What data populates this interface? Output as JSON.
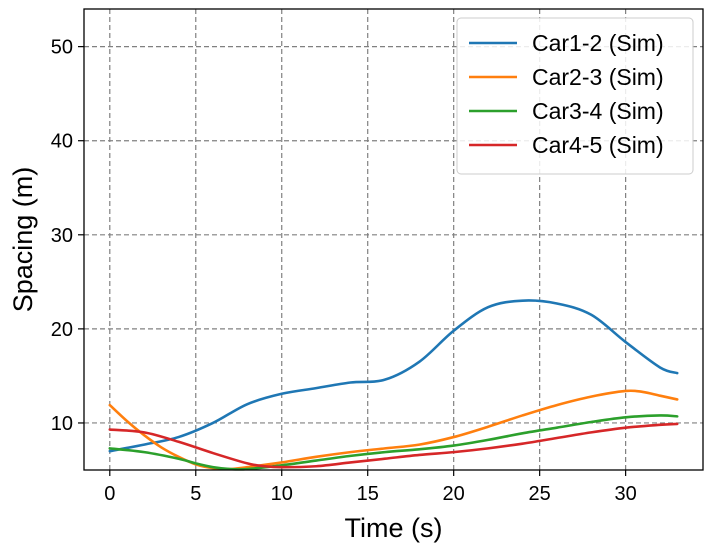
{
  "chart_data": {
    "type": "line",
    "title": "",
    "xlabel": "Time (s)",
    "ylabel": "Spacing (m)",
    "xlim": [
      -1.5,
      34.5
    ],
    "ylim": [
      5,
      54
    ],
    "xticks": [
      0,
      5,
      10,
      15,
      20,
      25,
      30
    ],
    "yticks": [
      10,
      20,
      30,
      40,
      50
    ],
    "grid": true,
    "legend_position": "top-right",
    "series": [
      {
        "name": "Car1-2 (Sim)",
        "color": "#1f77b4",
        "x": [
          0,
          2,
          4,
          6,
          8,
          10,
          12,
          14,
          16,
          18,
          20,
          22,
          24,
          26,
          28,
          30,
          32,
          33
        ],
        "y": [
          7.0,
          7.7,
          8.5,
          10.0,
          12.0,
          13.1,
          13.7,
          14.3,
          14.6,
          16.5,
          19.8,
          22.3,
          23.0,
          22.7,
          21.5,
          18.6,
          15.9,
          15.3
        ]
      },
      {
        "name": "Car2-3 (Sim)",
        "color": "#ff7f0e",
        "x": [
          0,
          1,
          2,
          3,
          4,
          5,
          6,
          7,
          8,
          10,
          12,
          14,
          16,
          18,
          20,
          22,
          24,
          26,
          28,
          30,
          31,
          32,
          33
        ],
        "y": [
          11.9,
          10.2,
          8.7,
          7.4,
          6.4,
          5.6,
          5.2,
          5.1,
          5.3,
          5.8,
          6.4,
          6.9,
          7.3,
          7.7,
          8.5,
          9.6,
          10.8,
          11.9,
          12.8,
          13.4,
          13.3,
          12.9,
          12.5
        ]
      },
      {
        "name": "Car3-4 (Sim)",
        "color": "#2ca02c",
        "x": [
          0,
          2,
          4,
          5,
          6,
          7,
          8,
          10,
          12,
          14,
          16,
          18,
          20,
          22,
          24,
          26,
          28,
          30,
          32,
          33
        ],
        "y": [
          7.3,
          6.9,
          6.2,
          5.7,
          5.3,
          5.1,
          5.1,
          5.5,
          6.0,
          6.5,
          6.9,
          7.2,
          7.6,
          8.2,
          8.9,
          9.5,
          10.1,
          10.6,
          10.8,
          10.7
        ]
      },
      {
        "name": "Car4-5 (Sim)",
        "color": "#d62728",
        "x": [
          0,
          2,
          4,
          6,
          8,
          9,
          10,
          12,
          14,
          16,
          18,
          20,
          22,
          24,
          26,
          28,
          30,
          32,
          33
        ],
        "y": [
          9.3,
          9.0,
          8.0,
          6.8,
          5.7,
          5.4,
          5.3,
          5.4,
          5.8,
          6.2,
          6.6,
          6.9,
          7.3,
          7.8,
          8.4,
          9.0,
          9.5,
          9.8,
          9.9
        ]
      }
    ]
  }
}
